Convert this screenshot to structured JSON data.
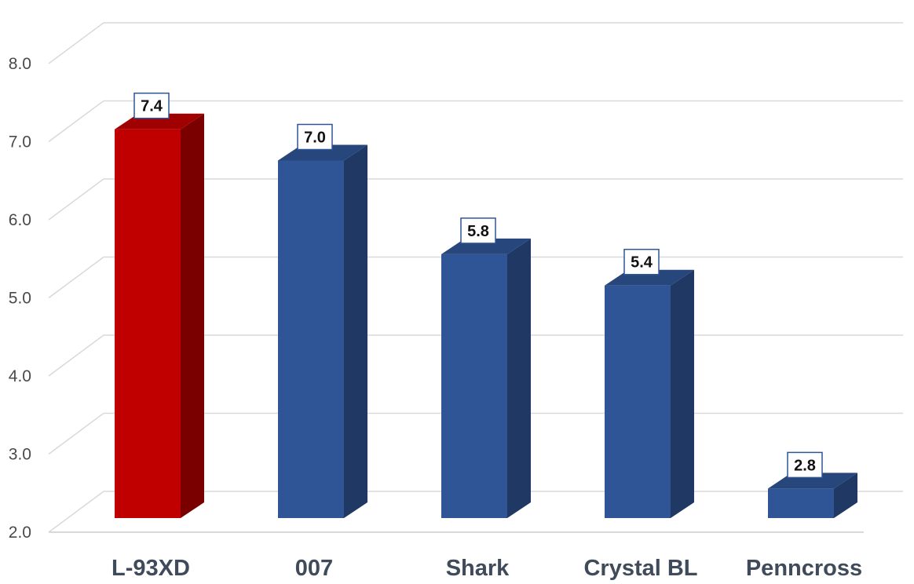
{
  "chart_data": {
    "type": "bar",
    "title": "",
    "xlabel": "",
    "ylabel": "",
    "categories": [
      "L-93XD",
      "007",
      "Shark",
      "Crystal BL",
      "Penncross"
    ],
    "values": [
      7.4,
      7.0,
      5.8,
      5.4,
      2.8
    ],
    "value_labels": [
      "7.4",
      "7.0",
      "5.8",
      "5.4",
      "2.8"
    ],
    "ylim": [
      2.0,
      8.0
    ],
    "yticks": [
      "2.0",
      "3.0",
      "4.0",
      "5.0",
      "6.0",
      "7.0",
      "8.0"
    ],
    "grid": true,
    "legend": "none",
    "style": "3d-column",
    "bar_colors": [
      "#c00000",
      "#2f5597",
      "#2f5597",
      "#2f5597",
      "#2f5597"
    ],
    "bar_side_colors": [
      "#7a0000",
      "#1f3864",
      "#1f3864",
      "#1f3864",
      "#1f3864"
    ],
    "bar_top_colors": [
      "#a00000",
      "#26467c",
      "#26467c",
      "#26467c",
      "#26467c"
    ],
    "label_border_color": "#2f5597",
    "grid_color": "#d9d9d9"
  }
}
